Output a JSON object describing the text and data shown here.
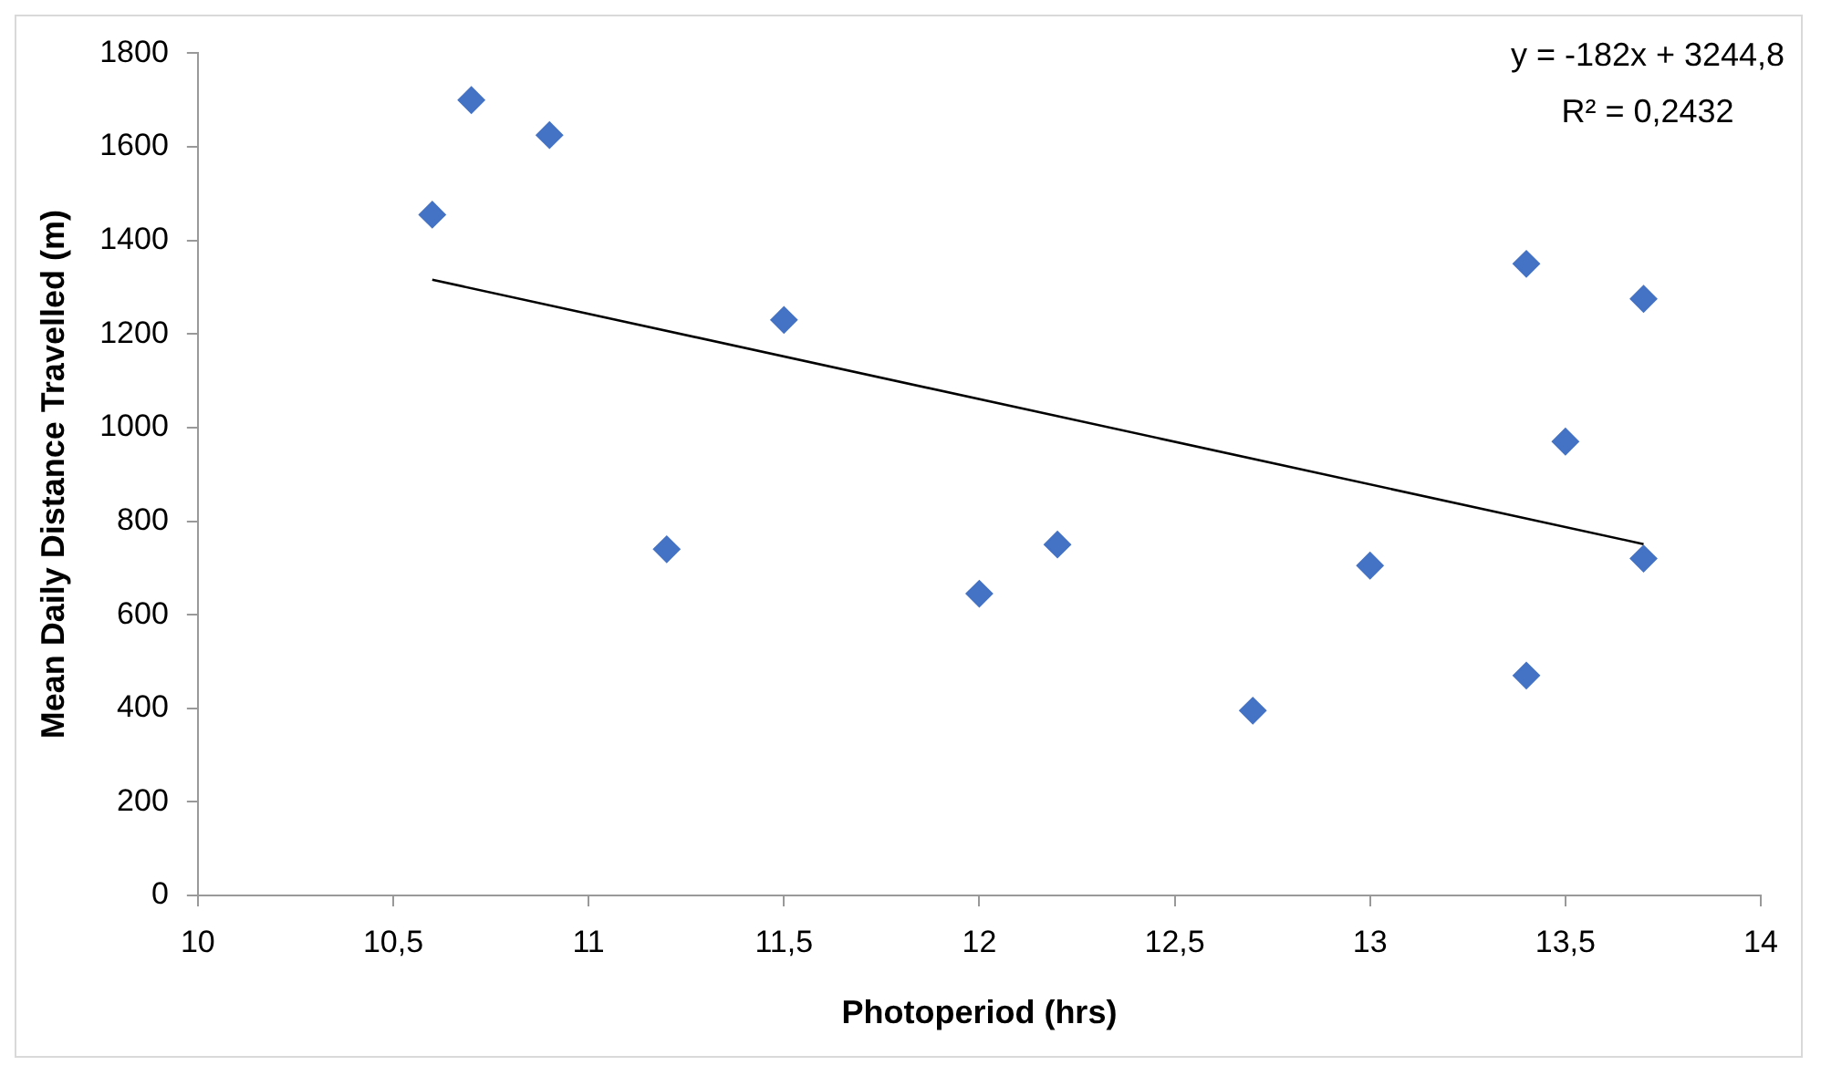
{
  "chart_data": {
    "type": "scatter",
    "xlabel": "Photoperiod (hrs)",
    "ylabel": "Mean Daily Distance Travelled (m)",
    "annotations": [
      "y = -182x + 3244,8",
      "R² = 0,2432"
    ],
    "series": [
      {
        "color": "#4472c4",
        "marker": "diamond",
        "x": [
          10.6,
          10.7,
          10.9,
          11.2,
          11.5,
          12.0,
          12.2,
          12.7,
          13.0,
          13.4,
          13.4,
          13.5,
          13.7,
          13.7
        ],
        "values": [
          1455,
          1700,
          1625,
          740,
          1230,
          645,
          750,
          395,
          705,
          1350,
          470,
          970,
          1275,
          720
        ]
      },
      {
        "type": "line",
        "color": "#000000",
        "marker": "none",
        "x": [
          10.6,
          13.7
        ],
        "values": [
          1316,
          751
        ]
      }
    ],
    "xlim": [
      10,
      14
    ],
    "xticks": [
      10,
      {
        "value": 10.5,
        "label": "10,5"
      },
      11,
      {
        "value": 11.5,
        "label": "11,5"
      },
      12,
      {
        "value": 12.5,
        "label": "12,5"
      },
      13,
      {
        "value": 13.5,
        "label": "13,5"
      },
      14
    ],
    "ylim": [
      0,
      1800
    ],
    "yticks": [
      0,
      200,
      400,
      600,
      800,
      1000,
      1200,
      1400,
      1600,
      1800
    ],
    "grid": false,
    "legend": false
  }
}
